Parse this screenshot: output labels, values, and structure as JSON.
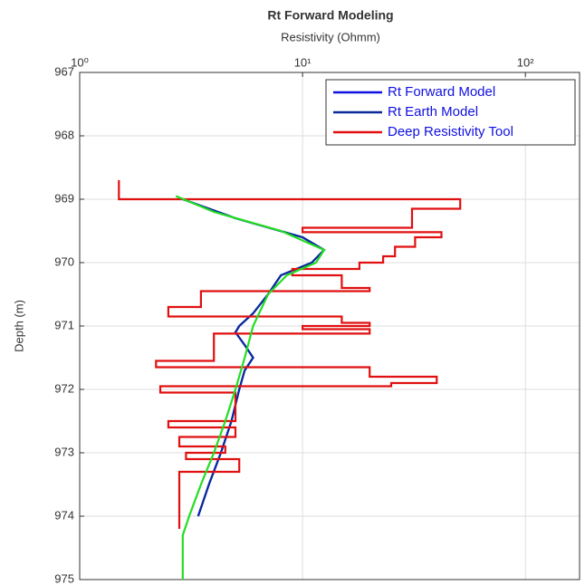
{
  "chart_data": {
    "type": "line",
    "title": "Rt Forward Modeling",
    "x_label": "Resistivity (Ohmm)",
    "y_label": "Depth (m)",
    "x_scale": "log",
    "y_reversed": true,
    "grid": true,
    "legend_position": "top-right",
    "xlim": [
      1,
      175
    ],
    "ylim": [
      967,
      975
    ],
    "xticks": [
      {
        "value": 1,
        "label": "10⁰"
      },
      {
        "value": 10,
        "label": "10¹"
      },
      {
        "value": 100,
        "label": "10²"
      }
    ],
    "yticks": [
      967,
      968,
      969,
      970,
      971,
      972,
      973,
      974,
      975
    ],
    "series": [
      {
        "name": "Rt Forward Model",
        "color": "#1010e0",
        "x": [
          2.9,
          5,
          10,
          12.5,
          11,
          8,
          7,
          6,
          5.2,
          5,
          5.5,
          6,
          5.5,
          5.2,
          4.8,
          4.3,
          3.8,
          3.4
        ],
        "y": [
          969.0,
          969.3,
          969.6,
          969.8,
          970.0,
          970.2,
          970.5,
          970.8,
          971.0,
          971.1,
          971.3,
          971.5,
          971.7,
          972.0,
          972.5,
          973.0,
          973.5,
          974.0
        ]
      },
      {
        "name": "Rt Earth Model",
        "color": "#0a2a9a",
        "x": [
          2.9,
          5,
          10,
          12.5,
          11,
          8,
          7,
          6,
          5.2,
          5,
          5.5,
          6,
          5.5,
          5.2,
          4.8,
          4.3,
          3.8,
          3.4
        ],
        "y": [
          969.0,
          969.3,
          969.6,
          969.8,
          970.0,
          970.2,
          970.5,
          970.8,
          971.0,
          971.1,
          971.3,
          971.5,
          971.7,
          972.0,
          972.5,
          973.0,
          973.5,
          974.0
        ]
      },
      {
        "name": "Deep Resistivity Tool",
        "color": "#e01010",
        "x": [
          1.5,
          1.5,
          51,
          51,
          31,
          31,
          10,
          10,
          42,
          42,
          32,
          32,
          26,
          26,
          23,
          23,
          18,
          18,
          9,
          9,
          15,
          15,
          20,
          20,
          3.5,
          3.5,
          2.5,
          2.5,
          15,
          15,
          20,
          20,
          10,
          10,
          20,
          20,
          4,
          4,
          2.2,
          2.2,
          20,
          20,
          40,
          40,
          25,
          25,
          2.3,
          2.3,
          5,
          5,
          2.5,
          2.5,
          5,
          5,
          2.8,
          2.8,
          4.5,
          4.5,
          3,
          3,
          5.2,
          5.2,
          2.8,
          2.8
        ],
        "y": [
          968.7,
          969.0,
          969.0,
          969.15,
          969.15,
          969.45,
          969.45,
          969.52,
          969.52,
          969.6,
          969.6,
          969.75,
          969.75,
          969.9,
          969.9,
          970.0,
          970.0,
          970.1,
          970.1,
          970.2,
          970.2,
          970.4,
          970.4,
          970.45,
          970.45,
          970.7,
          970.7,
          970.85,
          970.85,
          970.95,
          970.95,
          971.0,
          971.0,
          971.05,
          971.05,
          971.12,
          971.12,
          971.55,
          971.55,
          971.65,
          971.65,
          971.8,
          971.8,
          971.9,
          971.9,
          971.95,
          971.95,
          972.05,
          972.05,
          972.5,
          972.5,
          972.6,
          972.6,
          972.75,
          972.75,
          972.9,
          972.9,
          973.0,
          973.0,
          973.1,
          973.1,
          973.3,
          973.3,
          974.2
        ]
      },
      {
        "color": "#22dd22",
        "x": [
          2.7,
          4,
          8,
          12.5,
          11.5,
          8.5,
          7,
          6,
          5.5,
          5,
          4.5,
          4,
          3.5,
          3.1,
          2.9,
          2.9
        ],
        "y": [
          968.95,
          969.2,
          969.5,
          969.8,
          970.0,
          970.2,
          970.5,
          971.0,
          971.5,
          972.0,
          972.5,
          973.0,
          973.5,
          974.0,
          974.3,
          975.0
        ]
      }
    ]
  }
}
